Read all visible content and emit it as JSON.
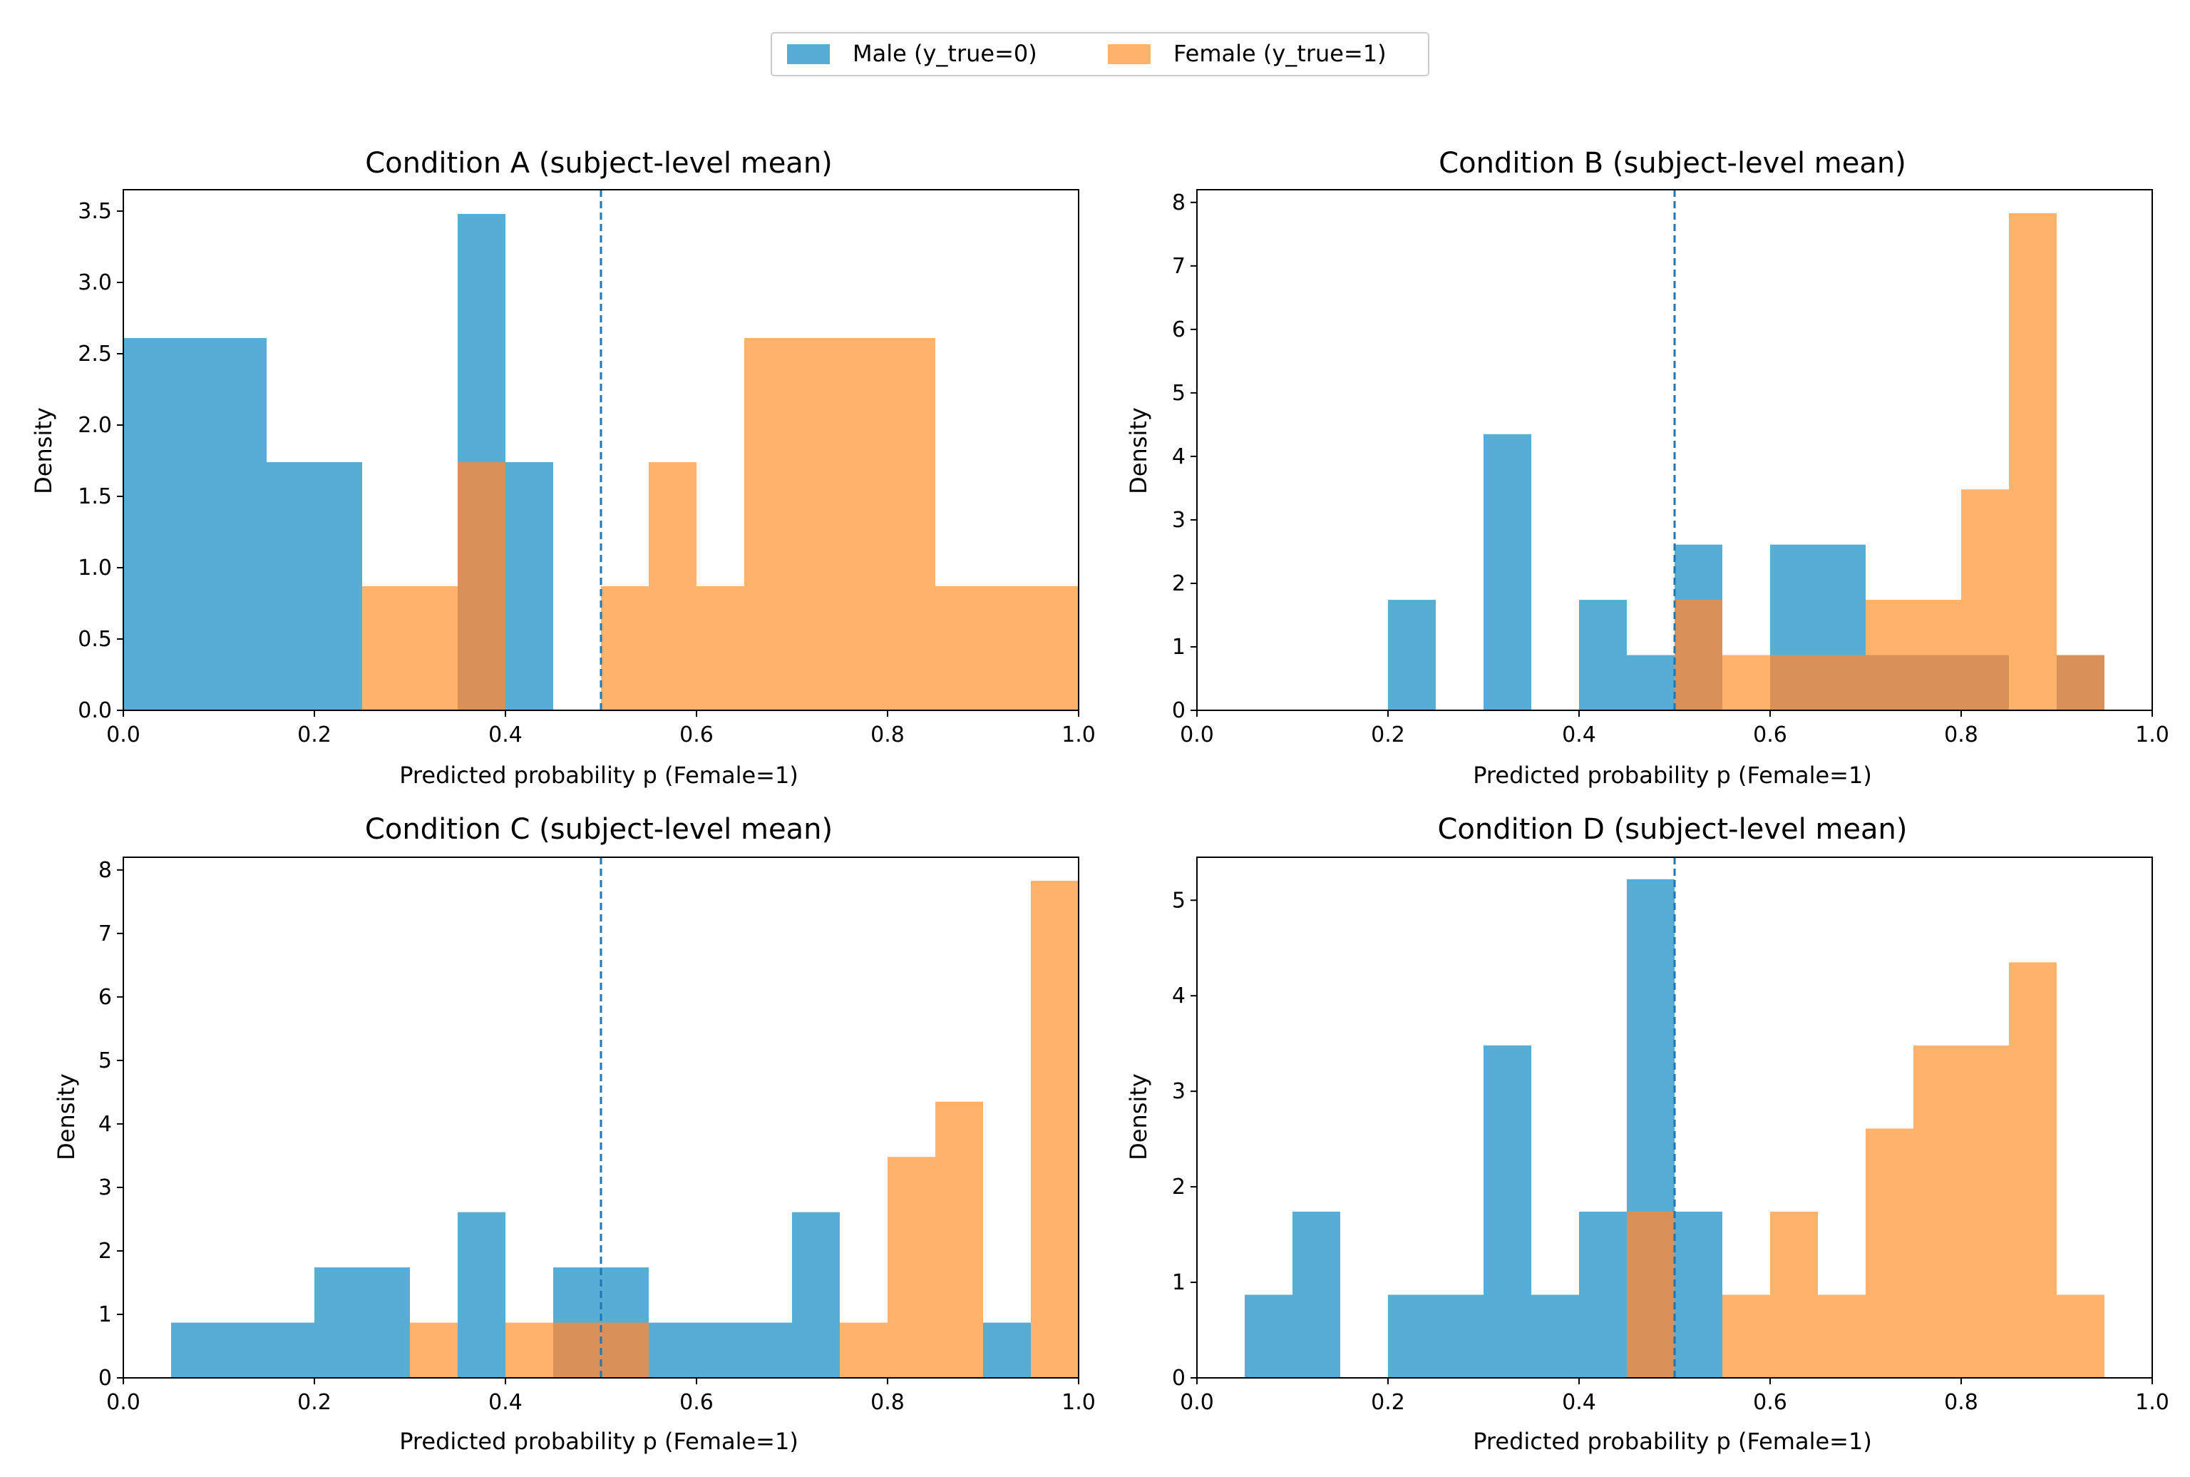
{
  "legend": {
    "entries": [
      {
        "label": "Male (y_true=0)",
        "color": "#56AED4"
      },
      {
        "label": "Female (y_true=1)",
        "color": "#FFB26B"
      }
    ]
  },
  "colors": {
    "male": "#56AED4",
    "female": "#FFB26B",
    "overlap": "#DA9159",
    "threshold": "#1f77b4"
  },
  "chart_data": [
    {
      "type": "bar",
      "title": "Condition A (subject-level mean)",
      "xlabel": "Predicted probability p (Female=1)",
      "ylabel": "Density",
      "xlim": [
        0.0,
        1.0
      ],
      "ylim": [
        0,
        3.65
      ],
      "xticks": [
        "0.0",
        "0.2",
        "0.4",
        "0.6",
        "0.8",
        "1.0"
      ],
      "yticks": [
        "0.0",
        "0.5",
        "1.0",
        "1.5",
        "2.0",
        "2.5",
        "3.0",
        "3.5"
      ],
      "threshold": 0.5,
      "series": [
        {
          "name": "Male (y_true=0)",
          "bins": [
            [
              0.0,
              0.15,
              2.61
            ],
            [
              0.15,
              0.25,
              1.74
            ],
            [
              0.35,
              0.4,
              3.48
            ],
            [
              0.4,
              0.45,
              1.74
            ]
          ]
        },
        {
          "name": "Female (y_true=1)",
          "bins": [
            [
              0.25,
              0.4,
              0.87
            ],
            [
              0.35,
              0.4,
              1.74
            ],
            [
              0.5,
              0.55,
              0.87
            ],
            [
              0.55,
              0.6,
              1.74
            ],
            [
              0.6,
              0.65,
              0.87
            ],
            [
              0.65,
              0.85,
              2.61
            ],
            [
              0.85,
              1.0,
              0.87
            ]
          ]
        }
      ]
    },
    {
      "type": "bar",
      "title": "Condition B (subject-level mean)",
      "xlabel": "Predicted probability p (Female=1)",
      "ylabel": "Density",
      "xlim": [
        0.0,
        1.0
      ],
      "ylim": [
        0,
        8.2
      ],
      "xticks": [
        "0.0",
        "0.2",
        "0.4",
        "0.6",
        "0.8",
        "1.0"
      ],
      "yticks": [
        "0",
        "1",
        "2",
        "3",
        "4",
        "5",
        "6",
        "7",
        "8"
      ],
      "threshold": 0.5,
      "series": [
        {
          "name": "Male (y_true=0)",
          "bins": [
            [
              0.2,
              0.25,
              1.74
            ],
            [
              0.3,
              0.35,
              4.35
            ],
            [
              0.4,
              0.45,
              1.74
            ],
            [
              0.45,
              0.5,
              0.87
            ],
            [
              0.5,
              0.55,
              2.61
            ],
            [
              0.6,
              0.7,
              2.61
            ],
            [
              0.7,
              0.85,
              0.87
            ],
            [
              0.9,
              0.95,
              0.87
            ]
          ]
        },
        {
          "name": "Female (y_true=1)",
          "bins": [
            [
              0.5,
              0.55,
              1.74
            ],
            [
              0.55,
              0.6,
              0.87
            ],
            [
              0.6,
              0.7,
              0.87
            ],
            [
              0.7,
              0.8,
              1.74
            ],
            [
              0.8,
              0.85,
              3.48
            ],
            [
              0.85,
              0.9,
              7.83
            ],
            [
              0.9,
              0.95,
              0.87
            ]
          ]
        }
      ]
    },
    {
      "type": "bar",
      "title": "Condition C (subject-level mean)",
      "xlabel": "Predicted probability p (Female=1)",
      "ylabel": "Density",
      "xlim": [
        0.0,
        1.0
      ],
      "ylim": [
        0,
        8.2
      ],
      "xticks": [
        "0.0",
        "0.2",
        "0.4",
        "0.6",
        "0.8",
        "1.0"
      ],
      "yticks": [
        "0",
        "1",
        "2",
        "3",
        "4",
        "5",
        "6",
        "7",
        "8"
      ],
      "threshold": 0.5,
      "series": [
        {
          "name": "Male (y_true=0)",
          "bins": [
            [
              0.05,
              0.2,
              0.87
            ],
            [
              0.2,
              0.3,
              1.74
            ],
            [
              0.35,
              0.4,
              2.61
            ],
            [
              0.45,
              0.55,
              1.74
            ],
            [
              0.55,
              0.7,
              0.87
            ],
            [
              0.7,
              0.75,
              2.61
            ],
            [
              0.9,
              0.95,
              0.87
            ]
          ]
        },
        {
          "name": "Female (y_true=1)",
          "bins": [
            [
              0.3,
              0.35,
              0.87
            ],
            [
              0.4,
              0.55,
              0.87
            ],
            [
              0.75,
              0.8,
              0.87
            ],
            [
              0.8,
              0.85,
              3.48
            ],
            [
              0.85,
              0.9,
              4.35
            ],
            [
              0.95,
              1.0,
              7.83
            ]
          ]
        }
      ]
    },
    {
      "type": "bar",
      "title": "Condition D (subject-level mean)",
      "xlabel": "Predicted probability p (Female=1)",
      "ylabel": "Density",
      "xlim": [
        0.0,
        1.0
      ],
      "ylim": [
        0,
        5.45
      ],
      "xticks": [
        "0.0",
        "0.2",
        "0.4",
        "0.6",
        "0.8",
        "1.0"
      ],
      "yticks": [
        "0",
        "1",
        "2",
        "3",
        "4",
        "5"
      ],
      "threshold": 0.5,
      "series": [
        {
          "name": "Male (y_true=0)",
          "bins": [
            [
              0.05,
              0.1,
              0.87
            ],
            [
              0.1,
              0.15,
              1.74
            ],
            [
              0.2,
              0.3,
              0.87
            ],
            [
              0.3,
              0.35,
              3.48
            ],
            [
              0.35,
              0.4,
              0.87
            ],
            [
              0.4,
              0.45,
              1.74
            ],
            [
              0.45,
              0.5,
              5.22
            ],
            [
              0.5,
              0.55,
              1.74
            ]
          ]
        },
        {
          "name": "Female (y_true=1)",
          "bins": [
            [
              0.45,
              0.5,
              1.74
            ],
            [
              0.55,
              0.6,
              0.87
            ],
            [
              0.6,
              0.65,
              1.74
            ],
            [
              0.65,
              0.7,
              0.87
            ],
            [
              0.7,
              0.75,
              2.61
            ],
            [
              0.75,
              0.85,
              3.48
            ],
            [
              0.85,
              0.9,
              4.35
            ],
            [
              0.9,
              0.95,
              0.87
            ]
          ]
        }
      ]
    }
  ]
}
